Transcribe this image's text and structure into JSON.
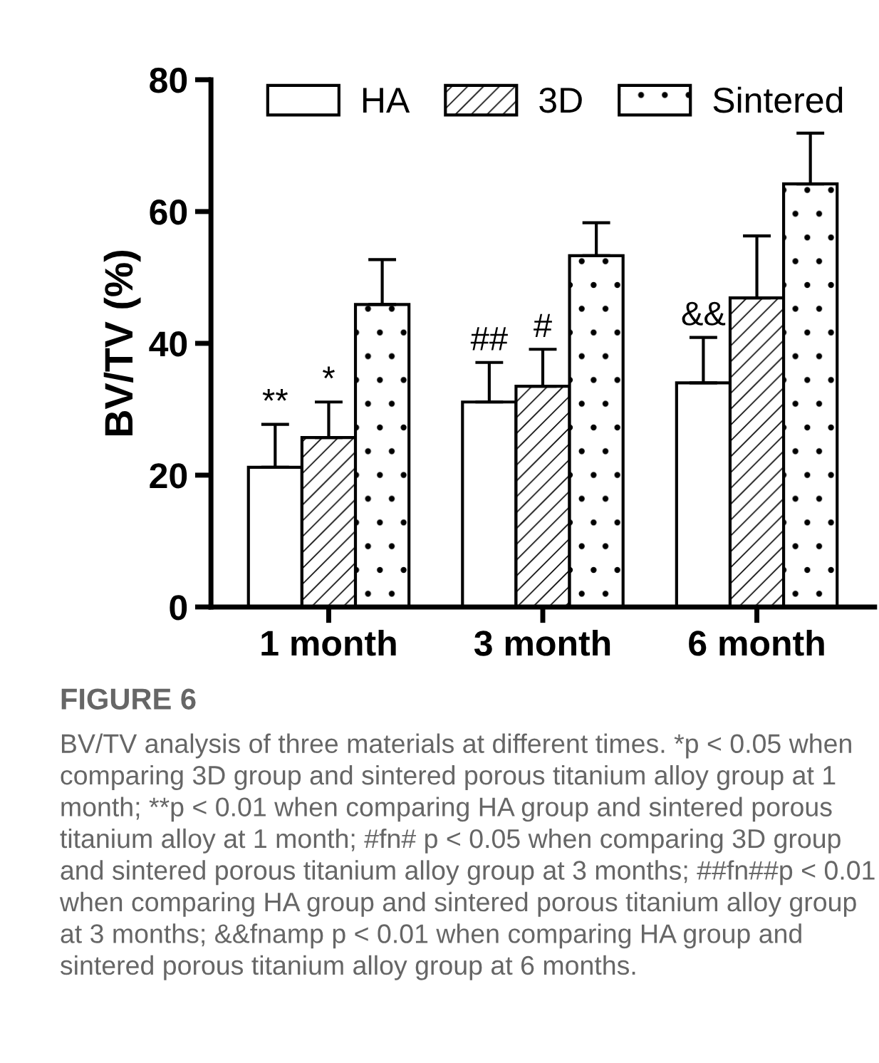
{
  "chart_data": {
    "type": "bar",
    "title": "FIGURE 6",
    "ylabel": "BV/TV (%)",
    "categories": [
      "1 month",
      "3 month",
      "6 month"
    ],
    "series": [
      {
        "name": "HA",
        "color": "#ffffff",
        "values": [
          21.2,
          31.1,
          34.0
        ],
        "errors": [
          [
            21.2,
            27.7
          ],
          [
            31.1,
            37.1
          ],
          [
            34.0,
            40.9
          ]
        ]
      },
      {
        "name": "3D",
        "color": "#ffffff",
        "values": [
          25.7,
          33.5,
          46.9
        ],
        "errors": [
          [
            25.7,
            31.1
          ],
          [
            33.5,
            39.1
          ],
          [
            46.9,
            56.3
          ]
        ]
      },
      {
        "name": "Sintered",
        "color": "#ffffff",
        "values": [
          45.9,
          53.3,
          64.2
        ],
        "errors": [
          [
            45.9,
            52.7
          ],
          [
            53.3,
            58.3
          ],
          [
            64.2,
            71.9
          ]
        ]
      }
    ],
    "ylim": [
      0,
      80
    ],
    "yticks": [
      0,
      20,
      40,
      60,
      80
    ],
    "grid": false,
    "legend": "top",
    "annotations": [
      "**",
      "*",
      "##",
      "#",
      "&&",
      "BV/TV analysis of three materials at different times. *p < 0.05 when comparing 3D group and sintered porous titanium alloy group at 1 month; **p < 0.01 when comparing HA group and sintered porous titanium alloy at 1 month; #fn# p < 0.05 when comparing 3D group and sintered porous titanium alloy group at 3 months; ##fn##p < 0.01 when comparing HA group and sintered porous titanium alloy group at 3 months; &&fnamp p < 0.01 when comparing HA group and sintered porous titanium alloy group at 6 months."
    ]
  }
}
